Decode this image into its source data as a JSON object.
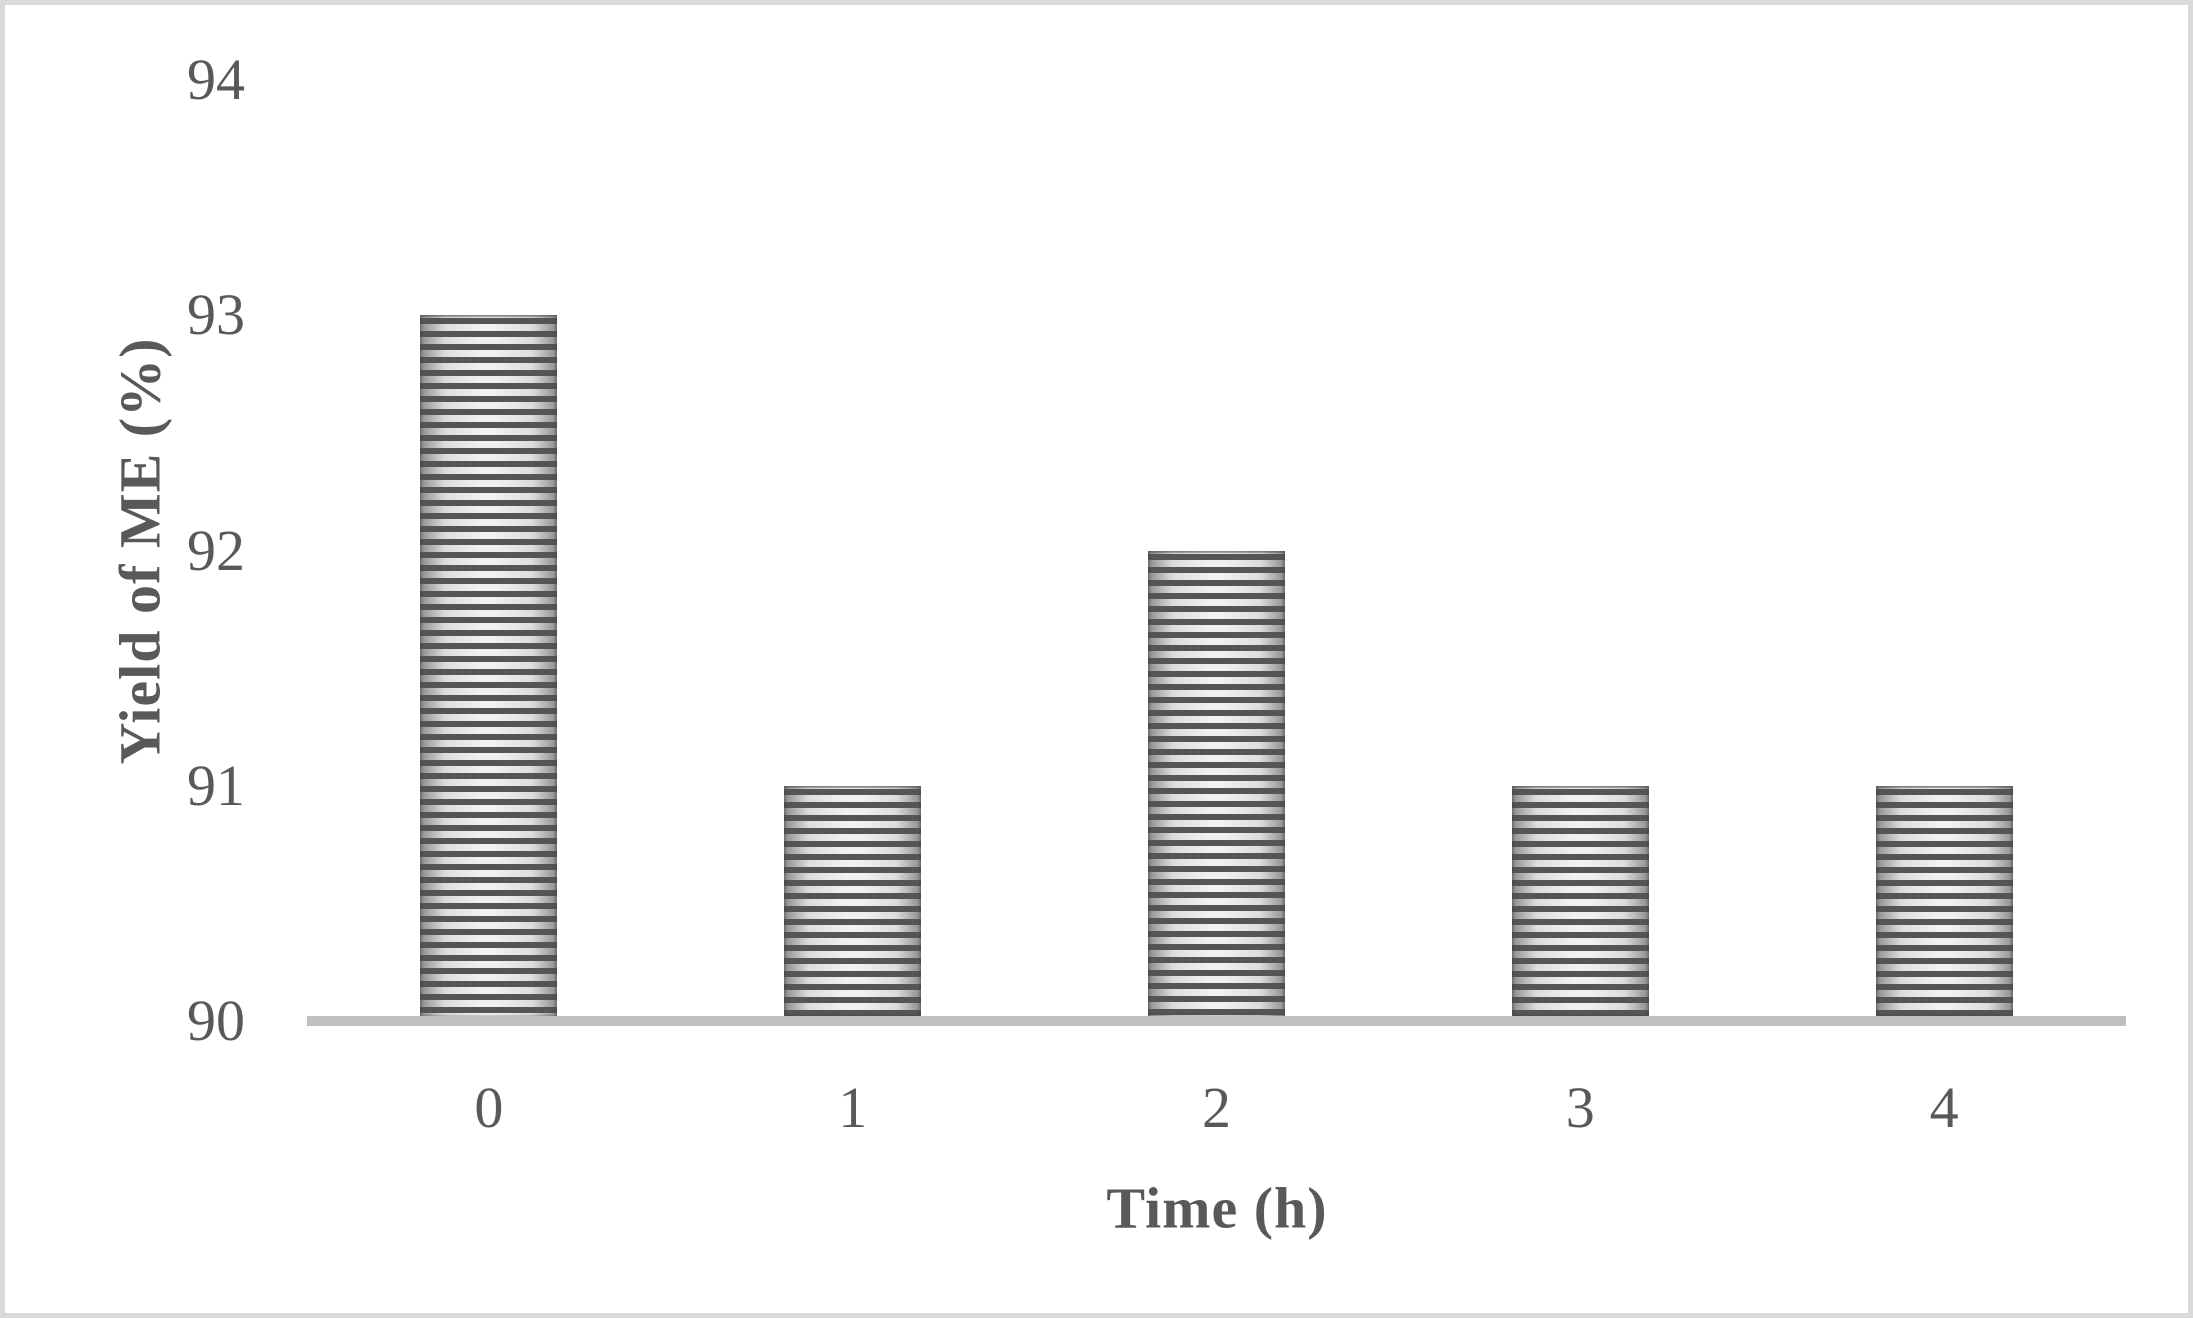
{
  "figure": {
    "background": "#ffffff",
    "border_color": "#d9d9d9"
  },
  "chart_data": {
    "type": "bar",
    "title": "",
    "categories": [
      "0",
      "1",
      "2",
      "3",
      "4"
    ],
    "values": [
      93,
      91,
      92,
      91,
      91
    ],
    "series_count": 1,
    "xlabel": "Time (h)",
    "ylabel": "Yield of ME (%)",
    "ylim": [
      90,
      94
    ],
    "yticks": [
      "94",
      "93",
      "92",
      "91",
      "90"
    ],
    "ytick_values": [
      94,
      93,
      92,
      91,
      90
    ],
    "grid": false,
    "legend": "none",
    "bar_fill_pattern": "horizontal-stripes",
    "colors": {
      "text": "#595959",
      "axis_line": "#bfbfbf",
      "bar_stripe_dark": "#555555",
      "bar_body_center": "#f1f1f1",
      "bar_body_mid": "#dcdcdc",
      "bar_body_edge": "#8d8d8d"
    }
  }
}
